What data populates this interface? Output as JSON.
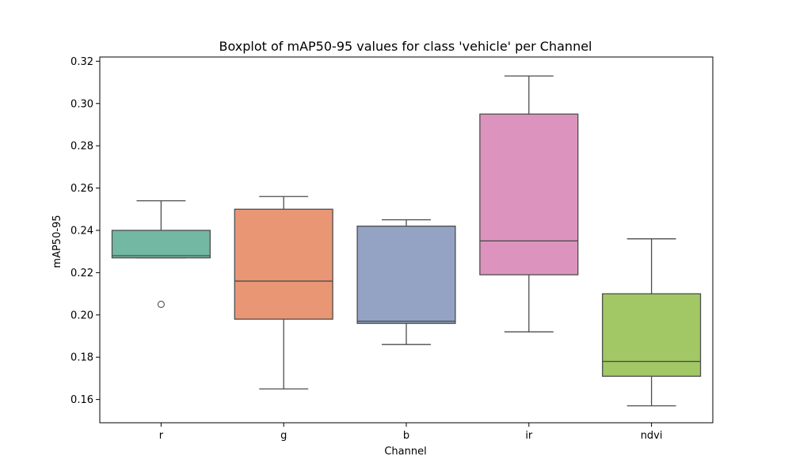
{
  "chart_data": {
    "type": "boxplot",
    "title": "Boxplot of mAP50-95 values for class 'vehicle' per Channel",
    "xlabel": "Channel",
    "ylabel": "mAP50-95",
    "categories": [
      "r",
      "g",
      "b",
      "ir",
      "ndvi"
    ],
    "ylim": [
      0.149,
      0.322
    ],
    "yticks": [
      "0.16",
      "0.18",
      "0.20",
      "0.22",
      "0.24",
      "0.26",
      "0.28",
      "0.30",
      "0.32"
    ],
    "boxes": [
      {
        "category": "r",
        "whisker_low": 0.227,
        "q1": 0.227,
        "median": 0.228,
        "q3": 0.24,
        "whisker_high": 0.254,
        "outliers": [
          0.205
        ],
        "color": "#73b8a2"
      },
      {
        "category": "g",
        "whisker_low": 0.165,
        "q1": 0.198,
        "median": 0.216,
        "q3": 0.25,
        "whisker_high": 0.256,
        "outliers": [],
        "color": "#e99675"
      },
      {
        "category": "b",
        "whisker_low": 0.186,
        "q1": 0.196,
        "median": 0.197,
        "q3": 0.242,
        "whisker_high": 0.245,
        "outliers": [],
        "color": "#94a3c3"
      },
      {
        "category": "ir",
        "whisker_low": 0.192,
        "q1": 0.219,
        "median": 0.235,
        "q3": 0.295,
        "whisker_high": 0.313,
        "outliers": [],
        "color": "#dc94be"
      },
      {
        "category": "ndvi",
        "whisker_low": 0.157,
        "q1": 0.171,
        "median": 0.178,
        "q3": 0.21,
        "whisker_high": 0.236,
        "outliers": [],
        "color": "#a1c864"
      }
    ],
    "grid": false,
    "legend": "none",
    "line_color": "#4d4d4d"
  }
}
